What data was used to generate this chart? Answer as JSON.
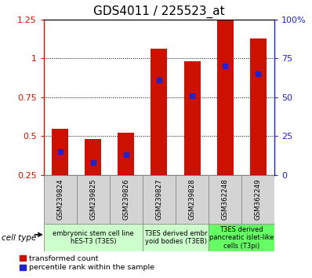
{
  "title": "GDS4011 / 225523_at",
  "samples": [
    "GSM239824",
    "GSM239825",
    "GSM239826",
    "GSM239827",
    "GSM239828",
    "GSM362248",
    "GSM362249"
  ],
  "transformed_count": [
    0.55,
    0.48,
    0.52,
    1.06,
    0.98,
    1.25,
    1.13
  ],
  "percentile_rank": [
    0.4,
    0.33,
    0.38,
    0.86,
    0.76,
    0.95,
    0.9
  ],
  "bar_color": "#cc1100",
  "dot_color": "#2222cc",
  "ylim": [
    0.25,
    1.25
  ],
  "yticks": [
    0.25,
    0.5,
    0.75,
    1.0,
    1.25
  ],
  "ytick_labels_left": [
    "0.25",
    "0.5",
    "0.75",
    "1",
    "1.25"
  ],
  "ytick_labels_right": [
    "0",
    "25",
    "50",
    "75",
    "100%"
  ],
  "cell_type_groups": [
    {
      "label": "embryonic stem cell line\nhES-T3 (T3ES)",
      "start": 0,
      "end": 2,
      "color": "#ccffcc"
    },
    {
      "label": "T3ES derived embr\nyoid bodies (T3EB)",
      "start": 3,
      "end": 4,
      "color": "#ccffcc"
    },
    {
      "label": "T3ES derived\npancreatic islet-like\ncells (T3pi)",
      "start": 5,
      "end": 6,
      "color": "#66ff66"
    }
  ],
  "cell_type_label": "cell type",
  "legend_red": "transformed count",
  "legend_blue": "percentile rank within the sample",
  "bar_width": 0.5,
  "dot_size": 18,
  "title_fontsize": 11,
  "tick_fontsize": 8,
  "label_fontsize": 7
}
